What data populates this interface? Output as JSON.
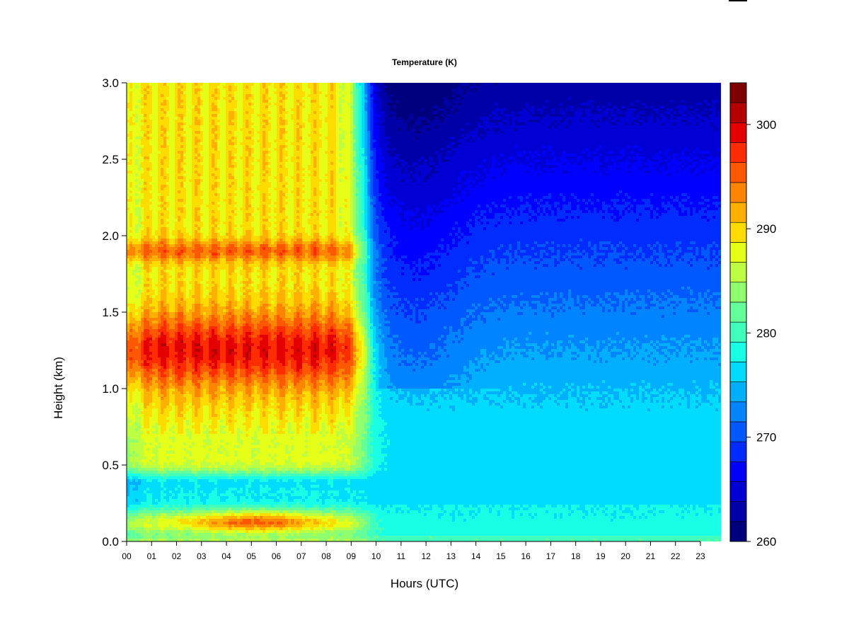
{
  "chart_data": {
    "type": "heatmap",
    "title": "Temperature (K)",
    "xlabel": "Hours (UTC)",
    "ylabel": "Height (km)",
    "x_ticks": [
      "00",
      "01",
      "02",
      "03",
      "04",
      "05",
      "06",
      "07",
      "08",
      "09",
      "10",
      "11",
      "12",
      "13",
      "14",
      "15",
      "16",
      "17",
      "18",
      "19",
      "20",
      "21",
      "22",
      "23"
    ],
    "x_range_hours": [
      0,
      23.8
    ],
    "y_ticks": [
      "0.0",
      "0.5",
      "1.0",
      "1.5",
      "2.0",
      "2.5",
      "3.0"
    ],
    "y_range_km": [
      0,
      3.0
    ],
    "colorbar": {
      "ticks": [
        "260",
        "270",
        "280",
        "290",
        "300"
      ],
      "range": [
        260,
        304
      ],
      "levels": 22,
      "colors": [
        "#00007f",
        "#0000a8",
        "#0000d4",
        "#0000ff",
        "#002cff",
        "#0058ff",
        "#0084ff",
        "#00b0ff",
        "#00dcff",
        "#18ffe6",
        "#40ffbd",
        "#64ff9b",
        "#90ff6e",
        "#bcff42",
        "#e6ff18",
        "#ffdc00",
        "#ffb000",
        "#ff8400",
        "#ff5800",
        "#ff2c00",
        "#e40000",
        "#b40000",
        "#7f0000"
      ]
    },
    "regions": {
      "morning_warm_period_hours": [
        0,
        9.3
      ],
      "transition_hours": [
        9.3,
        10.3
      ],
      "cold_period_hours": [
        10.3,
        23.8
      ],
      "morning_max_layer_height_km": 1.25,
      "morning_secondary_max_height_km": 1.9,
      "morning_cool_layer_height_km": 0.4,
      "morning_surface_warm_height_km": 0.13,
      "afternoon_upper_min_height_km": 3.0,
      "afternoon_lower_value_K": 277
    }
  }
}
